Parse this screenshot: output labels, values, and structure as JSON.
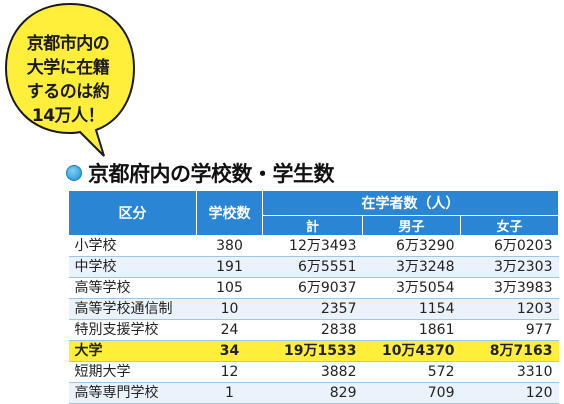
{
  "bubble": {
    "lines": [
      "京都市内の",
      "大学に在籍",
      "するのは約",
      "14万人！"
    ]
  },
  "heading": {
    "title": "京都府内の学校数・学生数"
  },
  "table": {
    "headers": {
      "category": "区分",
      "school_count": "学校数",
      "enrolled": "在学者数（人）",
      "total": "計",
      "male": "男子",
      "female": "女子"
    },
    "rows": [
      {
        "category": "小学校",
        "schools": "380",
        "total": "12万3493",
        "male": "6万3290",
        "female": "6万0203",
        "highlight": false
      },
      {
        "category": "中学校",
        "schools": "191",
        "total": "6万5551",
        "male": "3万3248",
        "female": "3万2303",
        "highlight": false
      },
      {
        "category": "高等学校",
        "schools": "105",
        "total": "6万9037",
        "male": "3万5054",
        "female": "3万3983",
        "highlight": false
      },
      {
        "category": "高等学校通信制",
        "schools": "10",
        "total": "2357",
        "male": "1154",
        "female": "1203",
        "highlight": false
      },
      {
        "category": "特別支援学校",
        "schools": "24",
        "total": "2838",
        "male": "1861",
        "female": "977",
        "highlight": false
      },
      {
        "category": "大学",
        "schools": "34",
        "total": "19万1533",
        "male": "10万4370",
        "female": "8万7163",
        "highlight": true
      },
      {
        "category": "短期大学",
        "schools": "12",
        "total": "3882",
        "male": "572",
        "female": "3310",
        "highlight": false
      },
      {
        "category": "高等専門学校",
        "schools": "1",
        "total": "829",
        "male": "709",
        "female": "120",
        "highlight": false
      }
    ]
  },
  "colors": {
    "header_bg": "#2a86d4",
    "highlight_bg": "#ffee3a",
    "stripe_bg": "#eaf3fb",
    "bubble_bg": "#ffee3a"
  }
}
